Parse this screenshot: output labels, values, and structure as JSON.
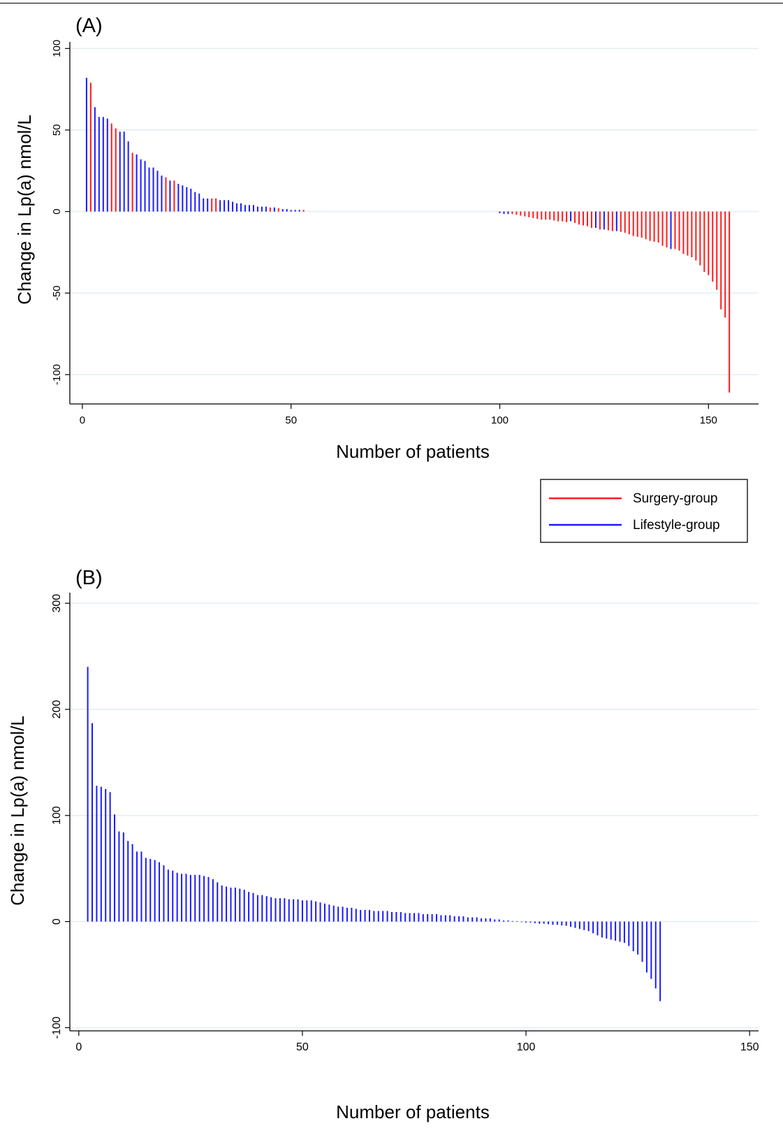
{
  "colors": {
    "surgery": "#ff1a1a",
    "lifestyle": "#1a1aff",
    "grid": "#e3eef2",
    "axis": "#000000"
  },
  "legend": {
    "placement": "right, between panels",
    "items": [
      {
        "label": "Surgery-group",
        "color": "#ff1a1a"
      },
      {
        "label": "Lifestyle-group",
        "color": "#1a1aff"
      }
    ]
  },
  "chart_data": [
    {
      "type": "bar",
      "panel_label": "(A)",
      "title": "",
      "xlabel": "Number of patients",
      "ylabel": "Change in Lp(a) nmol/L",
      "xlim": [
        -3,
        162
      ],
      "ylim": [
        -118,
        104
      ],
      "xticks": [
        0,
        50,
        100,
        150
      ],
      "yticks": [
        100,
        50,
        0,
        -50,
        -100
      ],
      "grid": true,
      "series": [
        {
          "name": "Surgery-group",
          "x": [
            2,
            7,
            8,
            12,
            20,
            22,
            31,
            32,
            45,
            47,
            53,
            103,
            104,
            105,
            106,
            107,
            108,
            109,
            110,
            111,
            112,
            113,
            114,
            115,
            116,
            118,
            119,
            120,
            121,
            122,
            124,
            126,
            127,
            129,
            130,
            131,
            132,
            133,
            134,
            135,
            136,
            137,
            138,
            139,
            140,
            142,
            143,
            144,
            145,
            146,
            147,
            148,
            149,
            150,
            151,
            152,
            153,
            154,
            155
          ],
          "values": [
            79,
            54,
            51,
            36,
            21,
            19,
            8,
            8,
            2.5,
            2,
            1,
            -1.5,
            -2,
            -2.5,
            -3,
            -3.5,
            -4,
            -4.5,
            -5,
            -5,
            -5,
            -5.5,
            -6,
            -6,
            -6.5,
            -7,
            -8,
            -8.5,
            -9,
            -10,
            -11,
            -11.5,
            -12,
            -12.5,
            -13,
            -14,
            -15,
            -15.5,
            -16,
            -17,
            -18,
            -18.5,
            -19,
            -21,
            -22,
            -23,
            -24,
            -26,
            -27,
            -28,
            -30,
            -33,
            -37,
            -39,
            -43,
            -48,
            -60,
            -65,
            -111
          ]
        },
        {
          "name": "Lifestyle-group",
          "x": [
            1,
            3,
            4,
            5,
            6,
            9,
            10,
            11,
            13,
            14,
            15,
            16,
            17,
            18,
            19,
            21,
            23,
            24,
            25,
            26,
            27,
            28,
            29,
            30,
            33,
            34,
            35,
            36,
            37,
            38,
            39,
            40,
            41,
            42,
            43,
            44,
            46,
            48,
            49,
            50,
            51,
            52,
            100,
            101,
            102,
            117,
            123,
            125,
            128,
            141
          ],
          "values": [
            82,
            64,
            58,
            58,
            57,
            49,
            49,
            43,
            35,
            32,
            31,
            27,
            27,
            25,
            22,
            19,
            17,
            16,
            15,
            14,
            12,
            11,
            8,
            8,
            7,
            7,
            7,
            6,
            5,
            5,
            4,
            4,
            4,
            3,
            3,
            3,
            2.5,
            1.5,
            1.5,
            1,
            1,
            1,
            -1,
            -1.5,
            -1.5,
            -6,
            -10,
            -11,
            -12,
            -23
          ]
        }
      ]
    },
    {
      "type": "bar",
      "panel_label": "(B)",
      "title": "",
      "xlabel": "Number of patients",
      "ylabel": "Change in Lp(a) nmol/L",
      "xlim": [
        -2,
        152
      ],
      "ylim": [
        -103,
        310
      ],
      "xticks": [
        0,
        50,
        100,
        150
      ],
      "yticks": [
        300,
        200,
        100,
        0,
        -100
      ],
      "grid": true,
      "series": [
        {
          "name": "Lifestyle-group",
          "x_start": 2,
          "values": [
            240,
            187,
            128,
            127,
            125,
            122,
            101,
            85,
            84,
            76,
            73,
            66,
            66,
            60,
            59,
            58,
            56,
            53,
            49,
            48,
            46,
            45,
            45,
            44,
            44,
            44,
            43,
            42,
            40,
            37,
            34,
            33,
            32,
            32,
            31,
            30,
            28,
            27,
            25,
            25,
            24,
            23,
            22,
            22,
            22,
            21,
            21,
            21,
            20,
            20,
            20,
            19,
            18,
            17,
            16,
            15,
            14,
            14,
            13,
            13,
            12,
            11,
            11,
            11,
            10,
            10,
            10,
            10,
            9,
            9,
            9,
            8,
            8,
            8,
            8,
            7,
            7,
            7,
            7,
            6,
            6,
            6,
            5,
            5,
            5,
            4,
            4,
            4,
            3,
            3,
            3,
            2,
            2,
            1,
            1,
            0.5,
            0.5,
            0,
            -1,
            -1,
            -1.5,
            -2,
            -2,
            -2.5,
            -3,
            -3,
            -3.5,
            -4,
            -5,
            -6,
            -7,
            -8,
            -9,
            -11,
            -13,
            -15,
            -16,
            -17,
            -18,
            -19,
            -20,
            -23,
            -28,
            -31,
            -38,
            -48,
            -54,
            -63,
            -75
          ]
        }
      ]
    }
  ]
}
